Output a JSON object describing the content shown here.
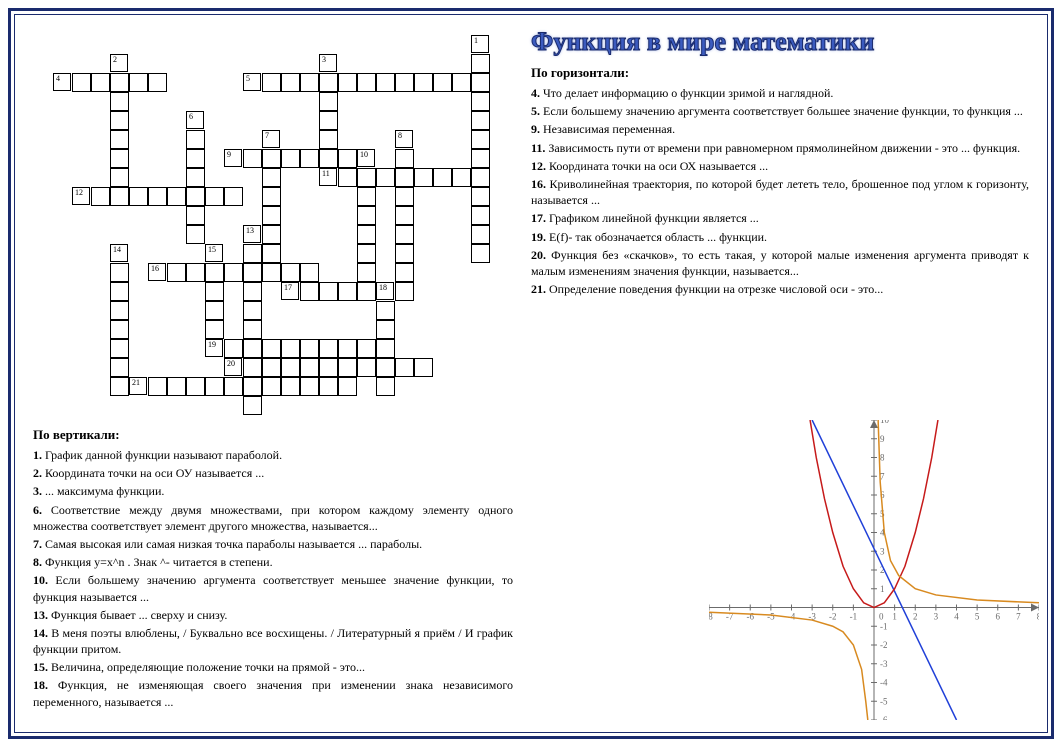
{
  "title": "Функция в мире математики",
  "horizontal": {
    "heading": "По горизонтали:",
    "clues": [
      {
        "n": "4.",
        "text": "Что делает информацию о функции зримой и наглядной."
      },
      {
        "n": "5.",
        "text": "Если большему значению аргумента соответствует большее значение функции, то функция ..."
      },
      {
        "n": "9.",
        "text": "Независимая переменная."
      },
      {
        "n": "11.",
        "text": "Зависимость пути от времени при равномерном прямолинейном движении - это ... функция."
      },
      {
        "n": "12.",
        "text": "Координата точки на оси ОХ называется ..."
      },
      {
        "n": "16.",
        "text": "Криволинейная траектория, по которой будет лететь тело, брошенное под углом к горизонту, называется ..."
      },
      {
        "n": "17.",
        "text": "Графиком линейной функции является ..."
      },
      {
        "n": "19.",
        "text": "E(f)- так обозначается область ... функции."
      },
      {
        "n": "20.",
        "text": "Функция без «скачков», то есть такая, у которой малые изменения аргумента приводят к малым изменениям значения функции, называется..."
      },
      {
        "n": "21.",
        "text": "Определение поведения функции на отрезке числовой оси - это..."
      }
    ]
  },
  "vertical": {
    "heading": "По вертикали:",
    "clues": [
      {
        "n": "1.",
        "text": "График данной функции называют параболой."
      },
      {
        "n": "2.",
        "text": "Координата точки на оси ОУ называется ..."
      },
      {
        "n": "3.",
        "text": "... максимума функции."
      },
      {
        "n": "6.",
        "text": "Соответствие между двумя множествами, при котором каждому элементу одного множества соответствует элемент другого множества, называется..."
      },
      {
        "n": "7.",
        "text": "Самая высокая или самая низкая точка параболы называется ... параболы."
      },
      {
        "n": "8.",
        "text": "Функция y=x^n . Знак ^- читается в степени."
      },
      {
        "n": "10.",
        "text": "Если большему значению аргумента соответствует меньшее значение функции, то функция называется ..."
      },
      {
        "n": "13.",
        "text": "Функция бывает ... сверху и снизу."
      },
      {
        "n": "14.",
        "text": "В меня поэты влюблены, / Буквально все восхищены. / Литературный я приём / И график функции притом."
      },
      {
        "n": "15.",
        "text": "Величина, определяющие положение точки на прямой - это..."
      },
      {
        "n": "18.",
        "text": "Функция, не изменяющая своего значения при изменении знака независимого переменного, называется ..."
      }
    ]
  },
  "crossword": {
    "cell_size": 19,
    "rows": 20,
    "cols": 24,
    "numbers": [
      {
        "row": 0,
        "col": 22,
        "n": 1
      },
      {
        "row": 1,
        "col": 3,
        "n": 2
      },
      {
        "row": 1,
        "col": 14,
        "n": 3
      },
      {
        "row": 2,
        "col": 0,
        "n": 4
      },
      {
        "row": 2,
        "col": 10,
        "n": 5
      },
      {
        "row": 4,
        "col": 7,
        "n": 6
      },
      {
        "row": 5,
        "col": 11,
        "n": 7
      },
      {
        "row": 5,
        "col": 18,
        "n": 8
      },
      {
        "row": 6,
        "col": 9,
        "n": 9
      },
      {
        "row": 6,
        "col": 16,
        "n": 10
      },
      {
        "row": 7,
        "col": 14,
        "n": 11
      },
      {
        "row": 8,
        "col": 1,
        "n": 12
      },
      {
        "row": 10,
        "col": 10,
        "n": 13
      },
      {
        "row": 11,
        "col": 3,
        "n": 14
      },
      {
        "row": 11,
        "col": 8,
        "n": 15
      },
      {
        "row": 12,
        "col": 5,
        "n": 16
      },
      {
        "row": 13,
        "col": 12,
        "n": 17
      },
      {
        "row": 13,
        "col": 17,
        "n": 18
      },
      {
        "row": 16,
        "col": 8,
        "n": 19
      },
      {
        "row": 17,
        "col": 9,
        "n": 20
      },
      {
        "row": 18,
        "col": 4,
        "n": 21
      }
    ],
    "cells": [
      [
        0,
        22
      ],
      [
        1,
        22
      ],
      [
        2,
        22
      ],
      [
        3,
        22
      ],
      [
        4,
        22
      ],
      [
        5,
        22
      ],
      [
        6,
        22
      ],
      [
        7,
        22
      ],
      [
        8,
        22
      ],
      [
        9,
        22
      ],
      [
        10,
        22
      ],
      [
        11,
        22
      ],
      [
        1,
        3
      ],
      [
        2,
        3
      ],
      [
        3,
        3
      ],
      [
        4,
        3
      ],
      [
        5,
        3
      ],
      [
        6,
        3
      ],
      [
        7,
        3
      ],
      [
        8,
        3
      ],
      [
        1,
        14
      ],
      [
        2,
        14
      ],
      [
        3,
        14
      ],
      [
        4,
        14
      ],
      [
        5,
        14
      ],
      [
        2,
        0
      ],
      [
        2,
        1
      ],
      [
        2,
        2
      ],
      [
        2,
        4
      ],
      [
        2,
        5
      ],
      [
        2,
        10
      ],
      [
        2,
        11
      ],
      [
        2,
        12
      ],
      [
        2,
        13
      ],
      [
        2,
        15
      ],
      [
        2,
        16
      ],
      [
        2,
        17
      ],
      [
        2,
        18
      ],
      [
        2,
        19
      ],
      [
        2,
        20
      ],
      [
        2,
        21
      ],
      [
        4,
        7
      ],
      [
        5,
        7
      ],
      [
        6,
        7
      ],
      [
        7,
        7
      ],
      [
        8,
        7
      ],
      [
        9,
        7
      ],
      [
        10,
        7
      ],
      [
        5,
        11
      ],
      [
        6,
        11
      ],
      [
        7,
        11
      ],
      [
        8,
        11
      ],
      [
        9,
        11
      ],
      [
        10,
        11
      ],
      [
        11,
        11
      ],
      [
        5,
        18
      ],
      [
        6,
        18
      ],
      [
        7,
        18
      ],
      [
        8,
        18
      ],
      [
        9,
        18
      ],
      [
        10,
        18
      ],
      [
        11,
        18
      ],
      [
        12,
        18
      ],
      [
        13,
        18
      ],
      [
        6,
        9
      ],
      [
        6,
        10
      ],
      [
        6,
        12
      ],
      [
        6,
        13
      ],
      [
        6,
        14
      ],
      [
        6,
        15
      ],
      [
        6,
        16
      ],
      [
        7,
        16
      ],
      [
        8,
        16
      ],
      [
        9,
        16
      ],
      [
        10,
        16
      ],
      [
        11,
        16
      ],
      [
        12,
        16
      ],
      [
        13,
        16
      ],
      [
        7,
        14
      ],
      [
        7,
        15
      ],
      [
        7,
        17
      ],
      [
        7,
        19
      ],
      [
        7,
        20
      ],
      [
        7,
        21
      ],
      [
        8,
        1
      ],
      [
        8,
        2
      ],
      [
        8,
        4
      ],
      [
        8,
        5
      ],
      [
        8,
        6
      ],
      [
        8,
        8
      ],
      [
        8,
        9
      ],
      [
        10,
        10
      ],
      [
        11,
        10
      ],
      [
        12,
        10
      ],
      [
        13,
        10
      ],
      [
        14,
        10
      ],
      [
        15,
        10
      ],
      [
        16,
        10
      ],
      [
        17,
        10
      ],
      [
        18,
        10
      ],
      [
        19,
        10
      ],
      [
        11,
        3
      ],
      [
        12,
        3
      ],
      [
        13,
        3
      ],
      [
        14,
        3
      ],
      [
        15,
        3
      ],
      [
        16,
        3
      ],
      [
        17,
        3
      ],
      [
        18,
        3
      ],
      [
        11,
        8
      ],
      [
        12,
        8
      ],
      [
        13,
        8
      ],
      [
        14,
        8
      ],
      [
        15,
        8
      ],
      [
        12,
        5
      ],
      [
        12,
        6
      ],
      [
        12,
        7
      ],
      [
        12,
        9
      ],
      [
        12,
        11
      ],
      [
        12,
        12
      ],
      [
        12,
        13
      ],
      [
        13,
        12
      ],
      [
        13,
        13
      ],
      [
        13,
        14
      ],
      [
        13,
        15
      ],
      [
        13,
        16
      ],
      [
        13,
        17
      ],
      [
        14,
        17
      ],
      [
        15,
        17
      ],
      [
        16,
        17
      ],
      [
        17,
        17
      ],
      [
        18,
        17
      ],
      [
        16,
        8
      ],
      [
        16,
        9
      ],
      [
        16,
        11
      ],
      [
        16,
        12
      ],
      [
        16,
        13
      ],
      [
        16,
        14
      ],
      [
        16,
        15
      ],
      [
        16,
        16
      ],
      [
        17,
        9
      ],
      [
        17,
        11
      ],
      [
        17,
        12
      ],
      [
        17,
        13
      ],
      [
        17,
        14
      ],
      [
        17,
        15
      ],
      [
        17,
        16
      ],
      [
        17,
        18
      ],
      [
        17,
        19
      ],
      [
        18,
        4
      ],
      [
        18,
        5
      ],
      [
        18,
        6
      ],
      [
        18,
        7
      ],
      [
        18,
        8
      ],
      [
        18,
        9
      ],
      [
        18,
        11
      ],
      [
        18,
        12
      ],
      [
        18,
        13
      ],
      [
        18,
        14
      ],
      [
        18,
        15
      ]
    ]
  },
  "graph": {
    "bg": "#ffffff",
    "axis_color": "#6b6b6b",
    "grid_color": "#e8e8e8",
    "xlim": [
      -8,
      8
    ],
    "ylim": [
      -6,
      10
    ],
    "xstep": 1,
    "ystep": 1,
    "label_fontsize": 9,
    "curves": [
      {
        "name": "line",
        "color": "#2040d8",
        "width": 1.5,
        "pts": [
          [
            -3,
            10
          ],
          [
            4,
            -6
          ]
        ]
      },
      {
        "name": "parabola",
        "color": "#c61a1a",
        "width": 1.5,
        "pts": [
          [
            -3.1,
            10
          ],
          [
            -2.8,
            8
          ],
          [
            -2.4,
            5.8
          ],
          [
            -2,
            4
          ],
          [
            -1.5,
            2.2
          ],
          [
            -1,
            1
          ],
          [
            -0.5,
            0.25
          ],
          [
            0,
            0
          ],
          [
            0.5,
            0.25
          ],
          [
            1,
            1
          ],
          [
            1.5,
            2.2
          ],
          [
            2,
            4
          ],
          [
            2.4,
            5.8
          ],
          [
            2.8,
            8
          ],
          [
            3.1,
            10
          ]
        ]
      },
      {
        "name": "hyperbola-right",
        "color": "#d88a20",
        "width": 1.5,
        "pts": [
          [
            0.2,
            10
          ],
          [
            0.3,
            6.7
          ],
          [
            0.5,
            4
          ],
          [
            0.8,
            2.5
          ],
          [
            1.2,
            1.7
          ],
          [
            2,
            1
          ],
          [
            3,
            0.67
          ],
          [
            5,
            0.4
          ],
          [
            8,
            0.25
          ]
        ]
      },
      {
        "name": "hyperbola-left",
        "color": "#d88a20",
        "width": 1.5,
        "pts": [
          [
            -0.3,
            -6
          ],
          [
            -0.4,
            -5
          ],
          [
            -0.6,
            -3.3
          ],
          [
            -1,
            -2
          ],
          [
            -1.5,
            -1.3
          ],
          [
            -2,
            -1
          ],
          [
            -3,
            -0.67
          ],
          [
            -5,
            -0.4
          ],
          [
            -8,
            -0.25
          ]
        ]
      }
    ]
  },
  "colors": {
    "border": "#1a2b6d",
    "title": "#3b5bbf",
    "text": "#000000"
  }
}
